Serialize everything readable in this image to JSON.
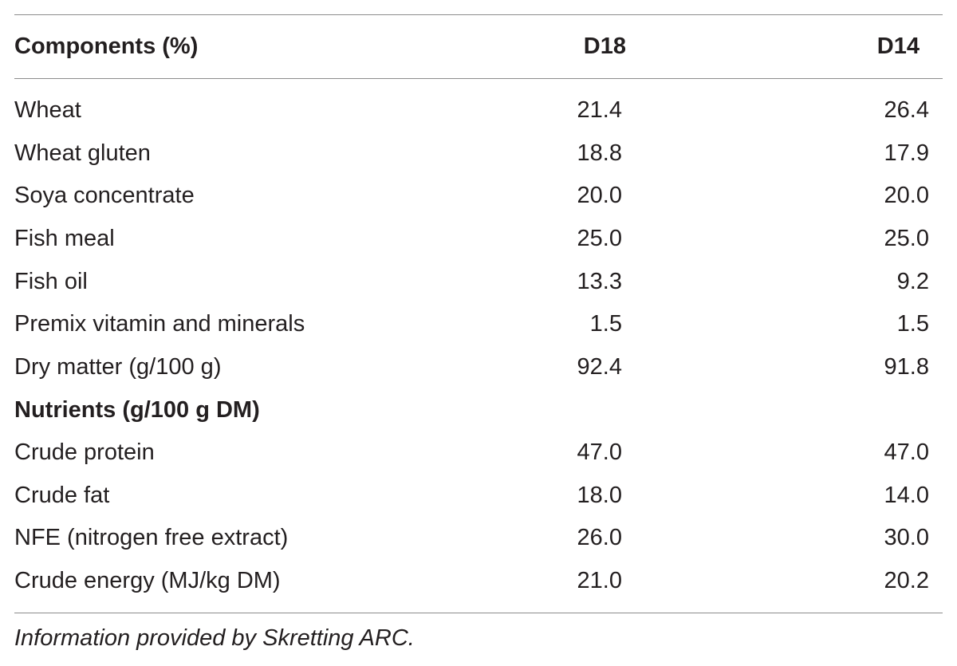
{
  "table": {
    "header": {
      "components": "Components (%)",
      "d18": "D18",
      "d14": "D14"
    },
    "composition_rows": [
      {
        "label": "Wheat",
        "d18": "21.4",
        "d14": "26.4"
      },
      {
        "label": "Wheat gluten",
        "d18": "18.8",
        "d14": "17.9"
      },
      {
        "label": "Soya concentrate",
        "d18": "20.0",
        "d14": "20.0"
      },
      {
        "label": "Fish meal",
        "d18": "25.0",
        "d14": "25.0"
      },
      {
        "label": "Fish oil",
        "d18": "13.3",
        "d14": "9.2"
      },
      {
        "label": "Premix vitamin and minerals",
        "d18": "1.5",
        "d14": "1.5"
      },
      {
        "label": "Dry matter (g/100 g)",
        "d18": "92.4",
        "d14": "91.8"
      }
    ],
    "nutrients_heading": "Nutrients (g/100 g DM)",
    "nutrient_rows": [
      {
        "label": "Crude protein",
        "d18": "47.0",
        "d14": "47.0"
      },
      {
        "label": "Crude fat",
        "d18": "18.0",
        "d14": "14.0"
      },
      {
        "label": "NFE (nitrogen free extract)",
        "d18": "26.0",
        "d14": "30.0"
      },
      {
        "label": "Crude energy (MJ/kg DM)",
        "d18": "21.0",
        "d14": "20.2"
      }
    ],
    "footnote": "Information provided by Skretting ARC."
  }
}
